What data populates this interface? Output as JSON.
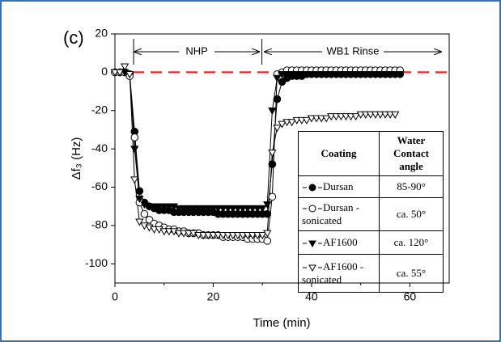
{
  "chart_data": {
    "type": "scatter",
    "panel_label": "(c)",
    "xlabel": "Time (min)",
    "ylabel": "Δf₃ (Hz)",
    "xlim": [
      0,
      68
    ],
    "ylim": [
      -110,
      20
    ],
    "xticks": [
      0,
      20,
      40,
      60
    ],
    "xminorticks": [
      10,
      30,
      50
    ],
    "yticks": [
      20,
      0,
      -20,
      -40,
      -60,
      -80,
      -100
    ],
    "hline": {
      "value": 0,
      "color": "#e8282b"
    },
    "annotations": [
      "NHP",
      "WB1 Rinse"
    ],
    "legend_header": [
      "Coating",
      "Water Contact angle"
    ],
    "contact_angles": [
      "85-90°",
      "ca. 50°",
      "ca. 120°",
      "ca. 55°"
    ],
    "x": [
      0,
      1,
      2,
      3,
      4,
      5,
      6,
      7,
      8,
      9,
      10,
      11,
      12,
      13,
      14,
      15,
      16,
      17,
      18,
      19,
      20,
      21,
      22,
      23,
      24,
      25,
      26,
      27,
      28,
      29,
      30,
      31,
      32,
      33,
      34,
      35,
      36,
      37,
      38,
      39,
      40,
      41,
      42,
      43,
      44,
      45,
      46,
      47,
      48,
      49,
      50,
      51,
      52,
      53,
      54,
      55,
      56,
      57,
      58
    ],
    "series": [
      {
        "name": "Dursan",
        "marker": "circle",
        "filled": true,
        "color": "#000000",
        "values": [
          0,
          0,
          0,
          -1,
          -31,
          -62,
          -68,
          -70,
          -71,
          -72,
          -72,
          -72,
          -73,
          -73,
          -73,
          -73,
          -73,
          -73,
          -73,
          -73,
          -73,
          -74,
          -74,
          -74,
          -74,
          -74,
          -74,
          -74,
          -74,
          -74,
          -74,
          -74,
          -48,
          -14,
          -5,
          -3,
          -2,
          -2,
          -2,
          -1,
          -1,
          -1,
          -1,
          -1,
          -1,
          -1,
          -1,
          -1,
          -1,
          -1,
          -1,
          -1,
          -1,
          -1,
          -1,
          -1,
          -1,
          -1,
          -1
        ]
      },
      {
        "name": "Dursan - sonicated",
        "marker": "circle",
        "filled": false,
        "color": "#000000",
        "values": [
          0,
          0,
          0,
          -2,
          -34,
          -68,
          -74,
          -77,
          -79,
          -80,
          -81,
          -82,
          -82,
          -83,
          -83,
          -84,
          -84,
          -84,
          -85,
          -85,
          -85,
          -85,
          -86,
          -86,
          -86,
          -86,
          -86,
          -87,
          -87,
          -87,
          -87,
          -88,
          -65,
          -1,
          0,
          1,
          1,
          1,
          1,
          1,
          1,
          1,
          1,
          1,
          1,
          1,
          1,
          1,
          1,
          1,
          1,
          1,
          1,
          1,
          1,
          1,
          1,
          1,
          1
        ]
      },
      {
        "name": "AF1600",
        "marker": "triangle-down",
        "filled": true,
        "color": "#000000",
        "values": [
          0,
          0,
          0,
          -1,
          -40,
          -66,
          -69,
          -70,
          -70,
          -70,
          -70,
          -70,
          -70,
          -71,
          -71,
          -71,
          -71,
          -71,
          -71,
          -71,
          -71,
          -71,
          -71,
          -71,
          -71,
          -71,
          -71,
          -71,
          -71,
          -71,
          -71,
          -69,
          -20,
          -3,
          -1,
          -1,
          -1,
          -1,
          -1,
          -1,
          -1,
          -1,
          -1,
          -1,
          -1,
          -1,
          -1,
          -1,
          -1,
          -1,
          -1,
          -1,
          -1,
          -1,
          -1,
          -1,
          -1,
          -1,
          -1
        ]
      },
      {
        "name": "AF1600 - sonicated",
        "marker": "triangle-down",
        "filled": false,
        "color": "#000000",
        "values": [
          0,
          0,
          3,
          -1,
          -56,
          -78,
          -80,
          -81,
          -82,
          -82,
          -83,
          -83,
          -83,
          -84,
          -84,
          -84,
          -84,
          -85,
          -85,
          -85,
          -85,
          -85,
          -85,
          -85,
          -85,
          -85,
          -85,
          -85,
          -85,
          -85,
          -85,
          -84,
          -42,
          -29,
          -27,
          -26,
          -26,
          -25,
          -25,
          -25,
          -24,
          -24,
          -24,
          -24,
          -23,
          -23,
          -23,
          -23,
          -23,
          -23,
          -22,
          -22,
          -22,
          -22,
          -22,
          -22,
          -22,
          -22,
          null
        ]
      }
    ]
  }
}
